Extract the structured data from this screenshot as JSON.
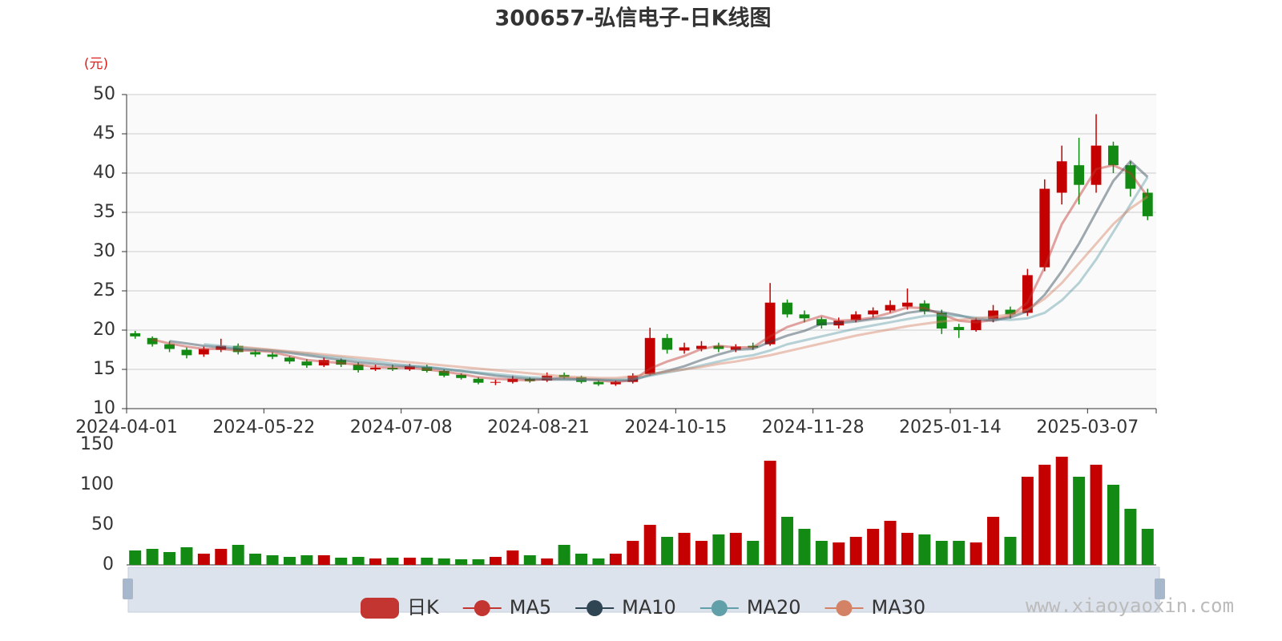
{
  "chart_data": {
    "type": "candlestick",
    "title": "300657-弘信电子-日K线图",
    "y_unit": "(元)",
    "watermark": "www.xiaoyaoxin.com",
    "categories": [
      "2024-04-01",
      null,
      null,
      null,
      null,
      null,
      null,
      null,
      "2024-05-22",
      null,
      null,
      null,
      null,
      null,
      null,
      null,
      "2024-07-08",
      null,
      null,
      null,
      null,
      null,
      null,
      null,
      "2024-08-21",
      null,
      null,
      null,
      null,
      null,
      null,
      null,
      "2024-10-15",
      null,
      null,
      null,
      null,
      null,
      null,
      null,
      "2024-11-28",
      null,
      null,
      null,
      null,
      null,
      null,
      null,
      "2025-01-14",
      null,
      null,
      null,
      null,
      null,
      null,
      null,
      "2025-03-07",
      null,
      null,
      null
    ],
    "ylim": [
      10,
      50
    ],
    "yticks": [
      10,
      15,
      20,
      25,
      30,
      35,
      40,
      45,
      50
    ],
    "up_color": "#c40000",
    "down_color": "#138a13",
    "grid": true,
    "candles": {
      "name": "日K",
      "color": "#c23531",
      "open": [
        19.6,
        19.0,
        18.2,
        17.5,
        16.9,
        17.5,
        18.0,
        17.2,
        16.9,
        16.5,
        16.0,
        15.5,
        16.2,
        15.6,
        15.0,
        15.2,
        15.0,
        15.3,
        14.8,
        14.3,
        13.8,
        13.3,
        13.4,
        13.8,
        13.6,
        14.3,
        14.0,
        13.4,
        13.1,
        13.4,
        14.4,
        19.0,
        17.4,
        17.6,
        18.0,
        17.5,
        18.0,
        18.2,
        23.5,
        22.0,
        21.4,
        20.6,
        21.3,
        22.0,
        22.5,
        23.0,
        23.4,
        22.2,
        20.4,
        20.0,
        21.4,
        22.6,
        22.2,
        28.0,
        37.5,
        41.0,
        38.5,
        43.5,
        41.0,
        37.5
      ],
      "close": [
        19.2,
        18.2,
        17.6,
        16.8,
        17.6,
        18.0,
        17.2,
        16.9,
        16.6,
        16.0,
        15.5,
        16.2,
        15.6,
        14.9,
        15.2,
        15.0,
        15.4,
        14.8,
        14.2,
        13.9,
        13.3,
        13.4,
        13.8,
        13.5,
        14.2,
        14.0,
        13.4,
        13.1,
        13.4,
        14.2,
        19.0,
        17.5,
        17.8,
        18.0,
        17.6,
        17.9,
        17.8,
        23.5,
        22.0,
        21.5,
        20.6,
        21.2,
        22.0,
        22.5,
        23.2,
        23.5,
        22.4,
        20.2,
        20.0,
        21.3,
        22.5,
        22.0,
        27.0,
        38.0,
        41.5,
        38.5,
        43.5,
        41.0,
        38.0,
        34.5
      ],
      "low": [
        18.9,
        17.9,
        17.2,
        16.4,
        16.6,
        17.2,
        16.9,
        16.6,
        16.3,
        15.7,
        15.2,
        15.3,
        15.3,
        14.6,
        14.8,
        14.8,
        14.8,
        14.6,
        14.0,
        13.7,
        13.1,
        13.0,
        13.2,
        13.3,
        13.4,
        13.8,
        13.2,
        12.9,
        12.9,
        13.2,
        14.2,
        17.0,
        17.0,
        17.3,
        17.2,
        17.2,
        17.5,
        18.0,
        21.6,
        21.0,
        20.2,
        20.2,
        21.0,
        21.6,
        22.2,
        22.6,
        22.0,
        19.5,
        19.0,
        19.8,
        21.0,
        21.5,
        21.8,
        27.5,
        36.0,
        36.0,
        37.5,
        40.0,
        37.0,
        34.0
      ],
      "high": [
        19.9,
        19.2,
        18.6,
        17.8,
        17.9,
        18.9,
        18.3,
        17.5,
        17.2,
        16.7,
        16.3,
        16.5,
        16.4,
        15.9,
        15.6,
        15.6,
        15.7,
        15.6,
        15.0,
        14.5,
        14.0,
        13.7,
        14.2,
        14.0,
        14.6,
        14.6,
        14.2,
        13.6,
        13.6,
        14.5,
        20.3,
        19.5,
        18.4,
        18.6,
        18.4,
        18.2,
        18.4,
        26.0,
        23.9,
        22.5,
        21.7,
        21.6,
        22.4,
        22.9,
        23.8,
        25.3,
        23.8,
        22.6,
        20.8,
        21.6,
        23.2,
        23.0,
        27.8,
        39.2,
        43.5,
        44.5,
        47.5,
        44.0,
        41.5,
        38.0
      ]
    },
    "series": [
      {
        "name": "MA5",
        "color": "#c23531",
        "values": [
          null,
          18.8,
          18.3,
          17.9,
          17.6,
          17.6,
          17.4,
          17.4,
          17.2,
          16.7,
          16.2,
          16.0,
          15.8,
          15.6,
          15.3,
          15.2,
          15.2,
          15.0,
          14.7,
          14.4,
          14.0,
          13.8,
          13.7,
          13.6,
          13.8,
          13.9,
          13.8,
          13.6,
          13.4,
          13.6,
          15.1,
          16.0,
          16.7,
          17.6,
          18.0,
          17.8,
          17.8,
          19.2,
          20.4,
          21.1,
          21.8,
          21.2,
          21.3,
          21.6,
          22.2,
          22.9,
          22.8,
          22.0,
          21.2,
          21.0,
          21.3,
          21.8,
          23.5,
          28.0,
          33.5,
          37.0,
          40.5,
          41.0,
          40.0,
          37.0
        ]
      },
      {
        "name": "MA10",
        "color": "#2f4554",
        "values": [
          null,
          null,
          18.6,
          18.3,
          18.0,
          17.8,
          17.6,
          17.5,
          17.4,
          17.1,
          16.8,
          16.5,
          16.2,
          15.9,
          15.7,
          15.5,
          15.4,
          15.3,
          15.0,
          14.8,
          14.5,
          14.2,
          14.0,
          13.8,
          13.7,
          13.7,
          13.7,
          13.7,
          13.6,
          13.6,
          14.3,
          14.8,
          15.4,
          16.2,
          16.9,
          17.5,
          17.6,
          18.5,
          19.3,
          19.9,
          20.8,
          20.9,
          21.1,
          21.4,
          21.6,
          22.2,
          22.5,
          22.3,
          21.9,
          21.4,
          21.2,
          21.6,
          22.4,
          24.5,
          27.5,
          31.0,
          35.0,
          39.0,
          41.5,
          39.5
        ]
      },
      {
        "name": "MA20",
        "color": "#61a0a8",
        "values": [
          null,
          null,
          null,
          null,
          18.2,
          18.0,
          17.8,
          17.6,
          17.4,
          17.2,
          17.0,
          16.7,
          16.5,
          16.2,
          16.0,
          15.7,
          15.5,
          15.3,
          15.1,
          14.8,
          14.6,
          14.4,
          14.2,
          14.0,
          13.9,
          13.8,
          13.7,
          13.7,
          13.7,
          13.8,
          14.2,
          14.6,
          15.0,
          15.5,
          16.0,
          16.5,
          16.8,
          17.4,
          18.2,
          18.7,
          19.2,
          19.7,
          20.2,
          20.6,
          21.0,
          21.4,
          21.8,
          21.9,
          21.8,
          21.6,
          21.4,
          21.3,
          21.5,
          22.2,
          23.8,
          26.0,
          29.0,
          32.5,
          36.0,
          39.5
        ]
      },
      {
        "name": "MA30",
        "color": "#d48265",
        "values": [
          null,
          null,
          null,
          null,
          null,
          null,
          17.9,
          17.7,
          17.5,
          17.3,
          17.1,
          16.9,
          16.7,
          16.5,
          16.3,
          16.1,
          15.9,
          15.7,
          15.5,
          15.3,
          15.1,
          14.9,
          14.7,
          14.5,
          14.3,
          14.1,
          14.0,
          13.9,
          13.9,
          14.1,
          14.4,
          14.7,
          15.0,
          15.3,
          15.7,
          16.0,
          16.4,
          16.8,
          17.3,
          17.8,
          18.3,
          18.8,
          19.3,
          19.7,
          20.1,
          20.5,
          20.8,
          21.1,
          21.3,
          21.5,
          21.7,
          22.0,
          22.6,
          24.0,
          26.0,
          28.5,
          31.0,
          33.5,
          35.5,
          37.0
        ]
      }
    ],
    "volume": {
      "ylim": [
        0,
        150
      ],
      "yticks": [
        0,
        50,
        100,
        150
      ],
      "values": [
        18,
        20,
        16,
        22,
        14,
        20,
        25,
        14,
        12,
        10,
        12,
        12,
        9,
        10,
        8,
        9,
        9,
        9,
        8,
        7,
        7,
        10,
        18,
        12,
        8,
        25,
        14,
        8,
        14,
        30,
        50,
        35,
        40,
        30,
        38,
        40,
        30,
        130,
        60,
        45,
        30,
        28,
        35,
        45,
        55,
        40,
        38,
        30,
        30,
        28,
        60,
        35,
        110,
        125,
        135,
        110,
        125,
        100,
        70,
        45
      ]
    }
  }
}
